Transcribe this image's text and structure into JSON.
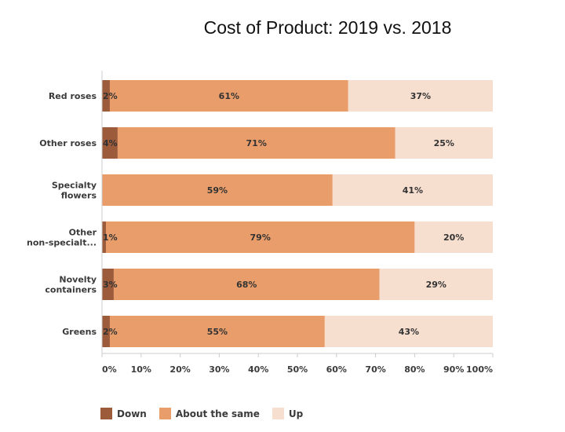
{
  "chart_data": {
    "type": "bar",
    "orientation": "horizontal",
    "stacked": true,
    "title": "Cost of Product: 2019 vs. 2018",
    "xlabel": "",
    "ylabel": "",
    "xlim": [
      0,
      100
    ],
    "x_ticks": [
      "0%",
      "10%",
      "20%",
      "30%",
      "40%",
      "50%",
      "60%",
      "70%",
      "80%",
      "90%",
      "100%"
    ],
    "categories": [
      [
        "Red roses"
      ],
      [
        "Other roses"
      ],
      [
        "Specialty",
        "flowers"
      ],
      [
        "Other",
        "non-specialt..."
      ],
      [
        "Novelty",
        "containers"
      ],
      [
        "Greens"
      ]
    ],
    "series": [
      {
        "name": "Down",
        "color": "#9c5b3a",
        "values": [
          2,
          4,
          0,
          1,
          3,
          2
        ],
        "labels": [
          "2%",
          "4%",
          "",
          "1%",
          "3%",
          "2%"
        ]
      },
      {
        "name": "About the same",
        "color": "#e99d6a",
        "values": [
          61,
          71,
          59,
          79,
          68,
          55
        ],
        "labels": [
          "61%",
          "71%",
          "59%",
          "79%",
          "68%",
          "55%"
        ]
      },
      {
        "name": "Up",
        "color": "#f7dfd0",
        "values": [
          37,
          25,
          41,
          20,
          29,
          43
        ],
        "labels": [
          "37%",
          "25%",
          "41%",
          "20%",
          "29%",
          "43%"
        ]
      }
    ],
    "legend_position": "bottom-left",
    "grid": false
  }
}
